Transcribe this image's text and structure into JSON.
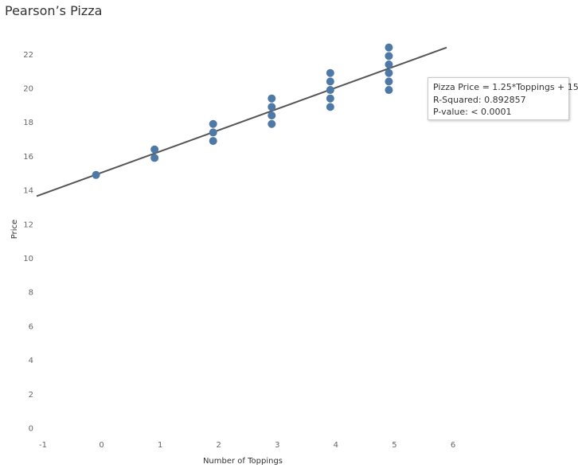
{
  "title": "Pearson’s Pizza",
  "chart_data": {
    "type": "scatter",
    "title": "Pearson’s Pizza",
    "xlabel": "Number of Toppings",
    "ylabel": "Price",
    "xlim": [
      -1,
      6
    ],
    "ylim": [
      0,
      23
    ],
    "x_ticks": [
      -1,
      0,
      1,
      2,
      3,
      4,
      5,
      6
    ],
    "y_ticks": [
      0,
      2,
      4,
      6,
      8,
      10,
      12,
      14,
      16,
      18,
      20,
      22
    ],
    "grid": false,
    "series": [
      {
        "points": [
          {
            "x": 0,
            "y": 15
          },
          {
            "x": 1,
            "y": 16
          },
          {
            "x": 1,
            "y": 16.5
          },
          {
            "x": 2,
            "y": 17
          },
          {
            "x": 2,
            "y": 17.5
          },
          {
            "x": 2,
            "y": 18
          },
          {
            "x": 3,
            "y": 18
          },
          {
            "x": 3,
            "y": 18.5
          },
          {
            "x": 3,
            "y": 19
          },
          {
            "x": 3,
            "y": 19.5
          },
          {
            "x": 4,
            "y": 19
          },
          {
            "x": 4,
            "y": 19.5
          },
          {
            "x": 4,
            "y": 20
          },
          {
            "x": 4,
            "y": 20.5
          },
          {
            "x": 4,
            "y": 21
          },
          {
            "x": 5,
            "y": 20
          },
          {
            "x": 5,
            "y": 20.5
          },
          {
            "x": 5,
            "y": 21
          },
          {
            "x": 5,
            "y": 21.5
          },
          {
            "x": 5,
            "y": 22
          },
          {
            "x": 5,
            "y": 22.5
          }
        ]
      }
    ],
    "trend_line": {
      "slope": 1.25,
      "intercept": 15,
      "x_range": [
        -1,
        6
      ]
    },
    "marker_color": "#4e79a7",
    "line_color": "#555555",
    "tooltip": {
      "equation": "Pizza Price = 1.25*Toppings + 15",
      "r_squared": "R-Squared: 0.892857",
      "p_value": "P-value: < 0.0001"
    }
  }
}
